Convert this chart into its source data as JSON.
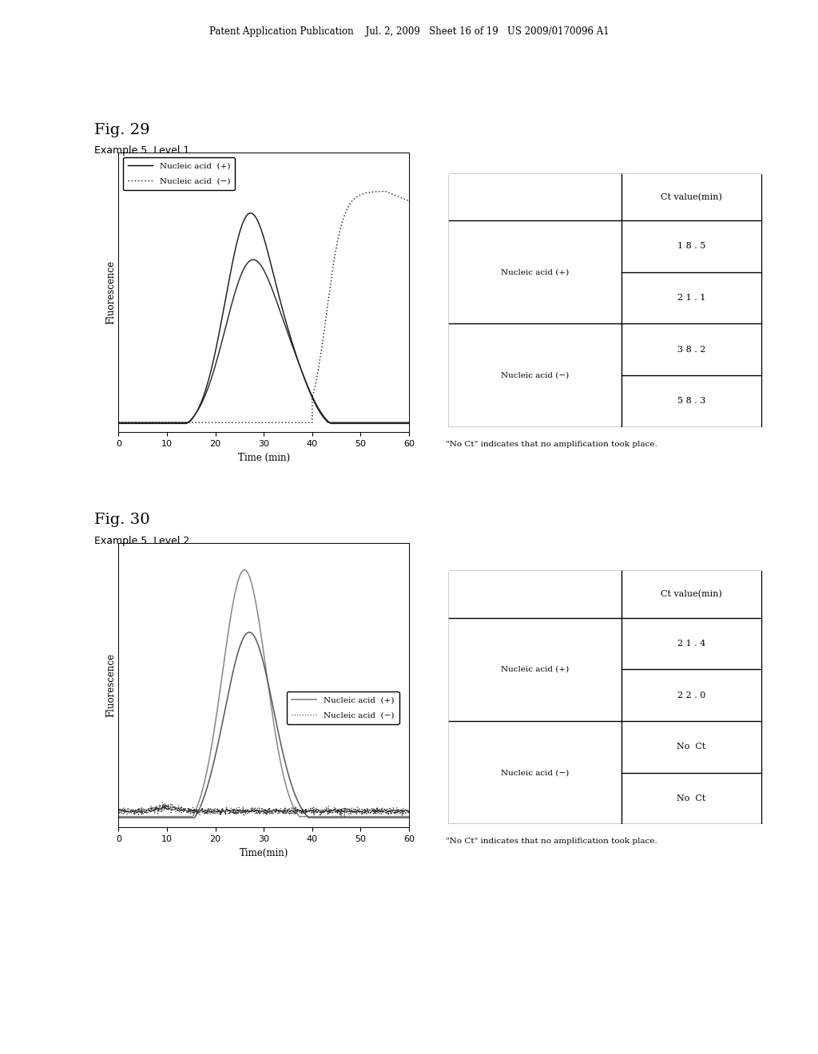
{
  "fig29_title": "Fig. 29",
  "fig29_subtitle": "Example 5  Level 1",
  "fig30_title": "Fig. 30",
  "fig30_subtitle": "Example 5  Level 2",
  "xlabel1": "Time (min)",
  "xlabel2": "Time(min)",
  "ylabel": "Fluorescence",
  "xmin": 0,
  "xmax": 60,
  "xticks": [
    0,
    10,
    20,
    30,
    40,
    50,
    60
  ],
  "bg_color": "#ffffff",
  "table1": {
    "col_header": "Ct value(min)",
    "rows": [
      {
        "label": "Nucleic acid (+)",
        "values": [
          "1 8 . 5",
          "2 1 . 1"
        ]
      },
      {
        "label": "Nucleic acid (−)",
        "values": [
          "3 8 . 2",
          "5 8 . 3"
        ]
      }
    ]
  },
  "table2": {
    "col_header": "Ct value(min)",
    "rows": [
      {
        "label": "Nucleic acid (+)",
        "values": [
          "2 1 . 4",
          "2 2 . 0"
        ]
      },
      {
        "label": "Nucleic acid (−)",
        "values": [
          "No  Ct",
          "No  Ct"
        ]
      }
    ]
  },
  "note": "\"No Ct\" indicates that no amplification took place.",
  "header_text": "Patent Application Publication    Jul. 2, 2009   Sheet 16 of 19   US 2009/0170096 A1"
}
